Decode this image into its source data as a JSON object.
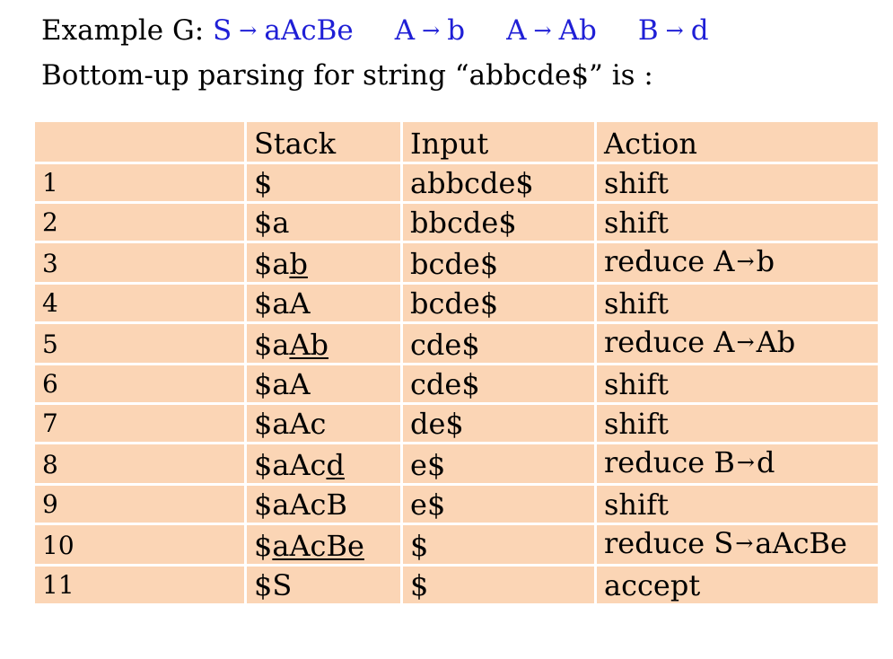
{
  "header": {
    "prefix": "Example G: ",
    "rules": [
      {
        "lhs": "S",
        "arrow": "→",
        "rhs": "aAcBe"
      },
      {
        "lhs": "A",
        "arrow": "→",
        "rhs": "b"
      },
      {
        "lhs": "A",
        "arrow": "→",
        "rhs": "Ab"
      },
      {
        "lhs": "B",
        "arrow": "→",
        "rhs": "d"
      }
    ],
    "subtitle": "Bottom-up parsing for string “abbcde$” is :"
  },
  "table": {
    "columns": [
      "",
      "Stack",
      "Input",
      "Action"
    ],
    "rows": [
      {
        "n": "1",
        "stack_pre": "$",
        "stack_ul": "",
        "input": "abbcde$",
        "action": "shift",
        "rule_lhs": "",
        "rule_rhs": ""
      },
      {
        "n": "2",
        "stack_pre": "$a",
        "stack_ul": "",
        "input": "bbcde$",
        "action": "shift",
        "rule_lhs": "",
        "rule_rhs": ""
      },
      {
        "n": "3",
        "stack_pre": "$a",
        "stack_ul": "b",
        "input": "bcde$",
        "action": "reduce",
        "rule_lhs": "A",
        "rule_rhs": "b"
      },
      {
        "n": "4",
        "stack_pre": "$aA",
        "stack_ul": "",
        "input": "bcde$",
        "action": "shift",
        "rule_lhs": "",
        "rule_rhs": ""
      },
      {
        "n": "5",
        "stack_pre": "$a",
        "stack_ul": "Ab",
        "input": "cde$",
        "action": "reduce",
        "rule_lhs": "A",
        "rule_rhs": "Ab"
      },
      {
        "n": "6",
        "stack_pre": "$aA",
        "stack_ul": "",
        "input": "cde$",
        "action": "shift",
        "rule_lhs": "",
        "rule_rhs": ""
      },
      {
        "n": "7",
        "stack_pre": "$aAc",
        "stack_ul": "",
        "input": "de$",
        "action": "shift",
        "rule_lhs": "",
        "rule_rhs": ""
      },
      {
        "n": "8",
        "stack_pre": "$aAc",
        "stack_ul": "d",
        "input": "e$",
        "action": "reduce",
        "rule_lhs": "B",
        "rule_rhs": "d"
      },
      {
        "n": "9",
        "stack_pre": "$aAcB",
        "stack_ul": "",
        "input": "e$",
        "action": "shift",
        "rule_lhs": "",
        "rule_rhs": ""
      },
      {
        "n": "10",
        "stack_pre": "$",
        "stack_ul": "aAcBe",
        "input": "$",
        "action": "reduce",
        "rule_lhs": "S",
        "rule_rhs": "aAcBe"
      },
      {
        "n": "11",
        "stack_pre": "$S",
        "stack_ul": "",
        "input": "$",
        "action": "accept",
        "rule_lhs": "",
        "rule_rhs": ""
      }
    ],
    "arrow": "→"
  },
  "colors": {
    "rule_text": "#1f1fd6",
    "cell_bg": "#fbd5b5"
  }
}
